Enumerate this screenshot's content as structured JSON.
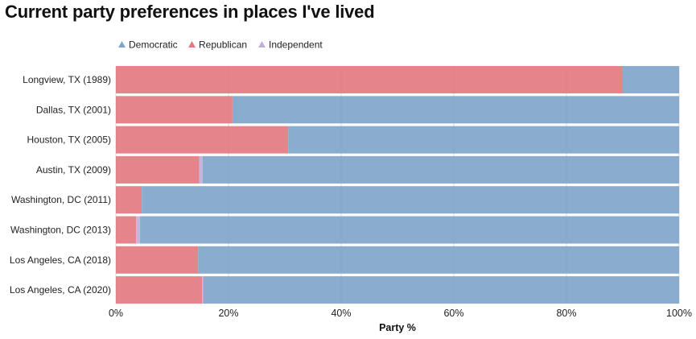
{
  "chart_data": {
    "type": "bar",
    "orientation": "horizontal",
    "stacked": true,
    "title": "Current party preferences in places I've lived",
    "xlabel": "Party %",
    "ylabel": "",
    "xlim": [
      0,
      100
    ],
    "x_ticks": [
      "0%",
      "20%",
      "40%",
      "60%",
      "80%",
      "100%"
    ],
    "x_tick_values": [
      0,
      20,
      40,
      60,
      80,
      100
    ],
    "grid": true,
    "legend_position": "top-left",
    "categories": [
      "Longview, TX (1989)",
      "Dallas, TX (2001)",
      "Houston, TX (2005)",
      "Austin, TX (2009)",
      "Washington, DC (2011)",
      "Washington, DC (2013)",
      "Los Angeles, CA (2018)",
      "Los Angeles, CA (2020)"
    ],
    "stack_order": [
      "Republican",
      "Independent",
      "Democratic"
    ],
    "series": [
      {
        "name": "Democratic",
        "color": "#7fa5cb",
        "values": [
          10.0,
          79.3,
          69.4,
          84.6,
          95.4,
          95.7,
          85.4,
          84.5
        ]
      },
      {
        "name": "Republican",
        "color": "#e37a80",
        "values": [
          90.0,
          20.7,
          30.6,
          14.8,
          4.6,
          3.6,
          14.6,
          15.3
        ]
      },
      {
        "name": "Independent",
        "color": "#c2aed8",
        "values": [
          0.0,
          0.0,
          0.0,
          0.6,
          0.0,
          0.7,
          0.0,
          0.2
        ]
      }
    ]
  }
}
